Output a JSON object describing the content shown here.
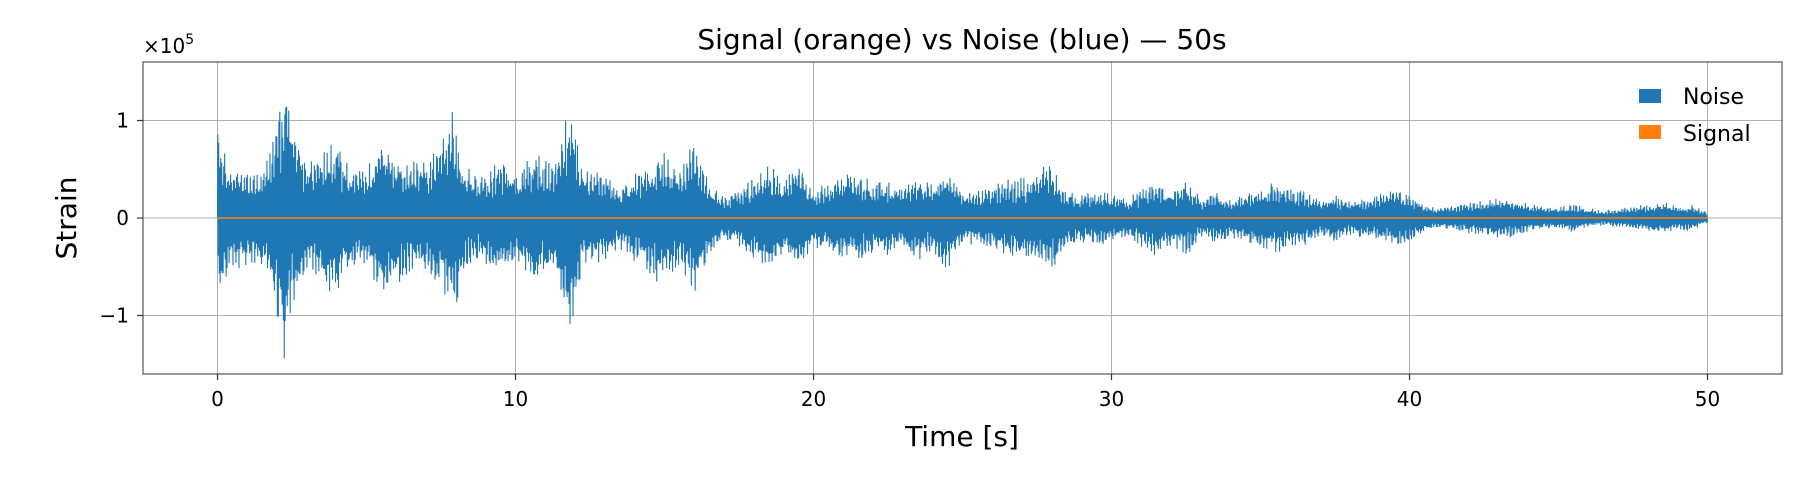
{
  "chart_data": {
    "type": "line",
    "title": "Signal (orange) vs Noise (blue) — 50s",
    "xlabel": "Time [s]",
    "ylabel": "Strain",
    "y_offset_label": "×10",
    "y_offset_exponent": "5",
    "xlim": [
      -2.5,
      52.5
    ],
    "ylim": [
      -1.6,
      1.6
    ],
    "x_ticks": [
      0,
      10,
      20,
      30,
      40,
      50
    ],
    "x_tick_labels": [
      "0",
      "10",
      "20",
      "30",
      "40",
      "50"
    ],
    "y_ticks": [
      -1,
      0,
      1
    ],
    "y_tick_labels": [
      "−1",
      "0",
      "1"
    ],
    "grid": true,
    "legend_position": "top-right",
    "series": [
      {
        "name": "Noise",
        "color": "#1f77b4",
        "envelope": [
          [
            0.0,
            0.95
          ],
          [
            0.3,
            0.62
          ],
          [
            0.8,
            0.52
          ],
          [
            1.2,
            0.48
          ],
          [
            1.6,
            0.55
          ],
          [
            2.0,
            1.05
          ],
          [
            2.3,
            1.55
          ],
          [
            2.6,
            0.9
          ],
          [
            3.0,
            0.55
          ],
          [
            3.5,
            0.72
          ],
          [
            4.0,
            0.88
          ],
          [
            4.5,
            0.5
          ],
          [
            5.0,
            0.55
          ],
          [
            5.5,
            0.82
          ],
          [
            6.0,
            0.7
          ],
          [
            6.5,
            0.58
          ],
          [
            7.0,
            0.62
          ],
          [
            7.5,
            0.78
          ],
          [
            7.9,
            1.2
          ],
          [
            8.3,
            0.55
          ],
          [
            8.8,
            0.45
          ],
          [
            9.5,
            0.62
          ],
          [
            10.0,
            0.48
          ],
          [
            10.6,
            0.72
          ],
          [
            11.2,
            0.55
          ],
          [
            11.8,
            1.2
          ],
          [
            12.3,
            0.5
          ],
          [
            13.0,
            0.48
          ],
          [
            13.5,
            0.32
          ],
          [
            14.0,
            0.45
          ],
          [
            14.5,
            0.62
          ],
          [
            15.0,
            0.72
          ],
          [
            15.5,
            0.5
          ],
          [
            16.0,
            0.85
          ],
          [
            16.5,
            0.38
          ],
          [
            17.0,
            0.22
          ],
          [
            17.5,
            0.3
          ],
          [
            18.0,
            0.45
          ],
          [
            18.5,
            0.55
          ],
          [
            19.0,
            0.42
          ],
          [
            19.5,
            0.6
          ],
          [
            20.0,
            0.3
          ],
          [
            20.5,
            0.38
          ],
          [
            21.0,
            0.45
          ],
          [
            21.5,
            0.5
          ],
          [
            22.0,
            0.38
          ],
          [
            22.5,
            0.42
          ],
          [
            23.0,
            0.32
          ],
          [
            23.5,
            0.45
          ],
          [
            24.0,
            0.35
          ],
          [
            24.5,
            0.58
          ],
          [
            25.0,
            0.28
          ],
          [
            25.5,
            0.3
          ],
          [
            26.0,
            0.35
          ],
          [
            26.5,
            0.4
          ],
          [
            27.0,
            0.42
          ],
          [
            27.5,
            0.5
          ],
          [
            28.0,
            0.58
          ],
          [
            28.5,
            0.3
          ],
          [
            29.0,
            0.25
          ],
          [
            29.5,
            0.3
          ],
          [
            30.0,
            0.25
          ],
          [
            30.5,
            0.22
          ],
          [
            31.0,
            0.3
          ],
          [
            31.5,
            0.4
          ],
          [
            32.0,
            0.28
          ],
          [
            32.5,
            0.42
          ],
          [
            33.0,
            0.2
          ],
          [
            33.5,
            0.28
          ],
          [
            34.0,
            0.2
          ],
          [
            34.5,
            0.25
          ],
          [
            35.0,
            0.32
          ],
          [
            35.5,
            0.38
          ],
          [
            36.0,
            0.32
          ],
          [
            36.5,
            0.28
          ],
          [
            37.0,
            0.2
          ],
          [
            37.5,
            0.25
          ],
          [
            38.0,
            0.18
          ],
          [
            38.5,
            0.22
          ],
          [
            39.0,
            0.25
          ],
          [
            39.5,
            0.3
          ],
          [
            40.0,
            0.26
          ],
          [
            40.5,
            0.15
          ],
          [
            41.0,
            0.12
          ],
          [
            41.5,
            0.14
          ],
          [
            42.0,
            0.16
          ],
          [
            42.5,
            0.18
          ],
          [
            43.0,
            0.22
          ],
          [
            43.5,
            0.2
          ],
          [
            44.0,
            0.15
          ],
          [
            44.5,
            0.12
          ],
          [
            45.0,
            0.12
          ],
          [
            45.5,
            0.15
          ],
          [
            46.0,
            0.1
          ],
          [
            46.5,
            0.08
          ],
          [
            47.0,
            0.1
          ],
          [
            47.5,
            0.12
          ],
          [
            48.0,
            0.15
          ],
          [
            48.5,
            0.18
          ],
          [
            49.0,
            0.12
          ],
          [
            49.5,
            0.14
          ],
          [
            50.0,
            0.06
          ]
        ]
      },
      {
        "name": "Signal",
        "color": "#ff7f0e",
        "y": 0
      }
    ]
  }
}
